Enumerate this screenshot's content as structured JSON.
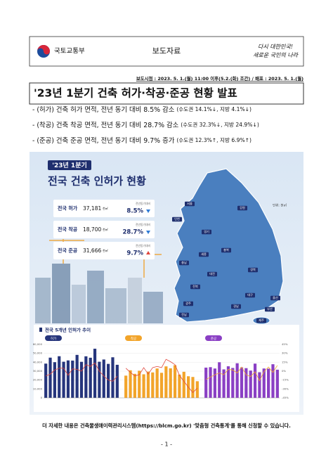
{
  "header": {
    "ministry": "국토교통부",
    "doc_type": "보도자료",
    "slogan": [
      "다시 대한민국!",
      "새로운 국민의 나라"
    ]
  },
  "release": "보도시점 : 2023. 5. 1.(월) 11:00 이후(5.2.(화) 조간) / 배포 : 2023. 5. 1.(월)",
  "title": "'23년 1분기 건축 허가·착공·준공 현황 발표",
  "bullets": [
    {
      "text": "- (허가) 건축 허가 면적, 전년 동기 대비 8.5% 감소",
      "note": "(수도권 14.1%↓, 지방 4.1%↓)"
    },
    {
      "text": "- (착공) 건축 착공 면적, 전년 동기 대비 28.7% 감소",
      "note": "(수도권 32.3%↓, 지방 24.9%↓)"
    },
    {
      "text": "- (준공) 건축 준공 면적, 전년 동기 대비 9.7% 증가",
      "note": "(수도권 12.3%↑, 지방 6.9%↑)"
    }
  ],
  "infographic": {
    "badge": "'23년 1분기",
    "title": "전국 건축 인허가 현황",
    "unit": "단위: 천㎡",
    "stats": [
      {
        "label": "전국 허가",
        "value": "37,181",
        "unit": "천㎡",
        "compare": "전년동기대비",
        "change": "8.5%"
      },
      {
        "label": "전국 착공",
        "value": "18,700",
        "unit": "천㎡",
        "compare": "전년동기대비",
        "change": "28.7%"
      },
      {
        "label": "전국 준공",
        "value": "31,666",
        "unit": "천㎡",
        "compare": "전년동기대비",
        "change": "9.7%"
      }
    ],
    "regions": [
      "서울",
      "인천",
      "경기",
      "강원",
      "충북",
      "세종",
      "충남",
      "대전",
      "경북",
      "대구",
      "전북",
      "울산",
      "경남",
      "광주",
      "부산",
      "전남",
      "제주"
    ],
    "trend": {
      "title": "전국 5개년 인허가 추이",
      "ylim": [
        0,
        60000
      ],
      "yticks": [
        0,
        {
          "value": 10000,
          "label": "10,000"
        },
        {
          "value": 20000,
          "label": "20,000"
        },
        {
          "value": 30000,
          "label": "30,000"
        },
        {
          "value": 40000,
          "label": "40,000"
        },
        {
          "value": 50000,
          "label": "50,000"
        },
        {
          "value": 60000,
          "label": "60,000"
        }
      ],
      "y2lim": [
        -45,
        45
      ],
      "y2ticks": [
        {
          "value": -45,
          "label": "-45%"
        },
        {
          "value": -30,
          "label": "-30%"
        },
        {
          "value": -15,
          "label": "-15%"
        },
        {
          "value": 0,
          "label": "0%"
        },
        {
          "value": 15,
          "label": "15%"
        },
        {
          "value": 30,
          "label": "30%"
        },
        {
          "value": 45,
          "label": "45%"
        }
      ],
      "panels": [
        {
          "name": "허가",
          "color": "#26357c",
          "line_color": "#e0463c",
          "values": [
            38500,
            45200,
            40100,
            46800,
            40600,
            42100,
            41900,
            48300,
            40500,
            46700,
            45100,
            55200,
            40600,
            43100,
            38200,
            45600,
            37181
          ],
          "rates": [
            -8,
            -5,
            2,
            5,
            5,
            -7,
            4,
            3,
            0,
            11,
            8,
            14,
            0,
            -8,
            -15,
            -17,
            -8.5
          ]
        },
        {
          "name": "착공",
          "color": "#f2a42a",
          "line_color": "#e0463c",
          "values": [
            25000,
            31000,
            27000,
            30500,
            26500,
            29500,
            28600,
            33000,
            28200,
            35400,
            33200,
            36700,
            26200,
            29300,
            24300,
            23500,
            18700
          ],
          "rates": [
            5,
            -2,
            -8,
            -6,
            6,
            -5,
            6,
            8,
            6,
            20,
            16,
            11,
            -7,
            -17,
            -27,
            -36,
            -28.7
          ]
        },
        {
          "name": "준공",
          "color": "#8a3fc4",
          "line_color": "#f2a42a",
          "values": [
            34000,
            34500,
            33000,
            40000,
            32000,
            35500,
            33600,
            38900,
            34200,
            33400,
            30700,
            38500,
            28800,
            33000,
            32800,
            37800,
            31666
          ],
          "rates": [
            -14,
            -10,
            -6,
            -3,
            -6,
            3,
            2,
            -3,
            7,
            -6,
            -9,
            -1,
            -16,
            -1,
            7,
            -2,
            9.7
          ]
        }
      ]
    }
  },
  "footer": "더 자세한 내용은 건축물생애이력관리시스템(https://blcm.go.kr) '맞춤형 건축통계'를 통해 신청할 수 있습니다.",
  "page": "- 1 -"
}
